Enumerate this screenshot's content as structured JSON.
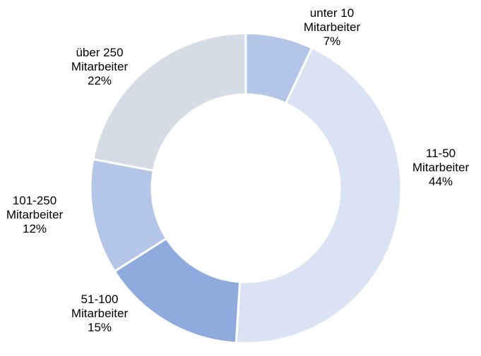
{
  "chart_data": {
    "type": "pie",
    "donut": true,
    "title": "",
    "categories": [
      "unter 10 Mitarbeiter",
      "11-50 Mitarbeiter",
      "51-100 Mitarbeiter",
      "101-250 Mitarbeiter",
      "über 250 Mitarbeiter"
    ],
    "values": [
      7,
      44,
      15,
      12,
      22
    ],
    "unit": "%",
    "colors": [
      "#b4c6e7",
      "#dae3f3",
      "#8faadc",
      "#b4c6e7",
      "#d6dce5"
    ],
    "legend": "none",
    "data_labels": [
      {
        "line1": "unter 10",
        "line2": "Mitarbeiter",
        "line3": "7%"
      },
      {
        "line1": "11-50",
        "line2": "Mitarbeiter",
        "line3": "44%"
      },
      {
        "line1": "51-100",
        "line2": "Mitarbeiter",
        "line3": "15%"
      },
      {
        "line1": "101-250",
        "line2": "Mitarbeiter",
        "line3": "12%"
      },
      {
        "line1": "über 250",
        "line2": "Mitarbeiter",
        "line3": "22%"
      }
    ]
  }
}
